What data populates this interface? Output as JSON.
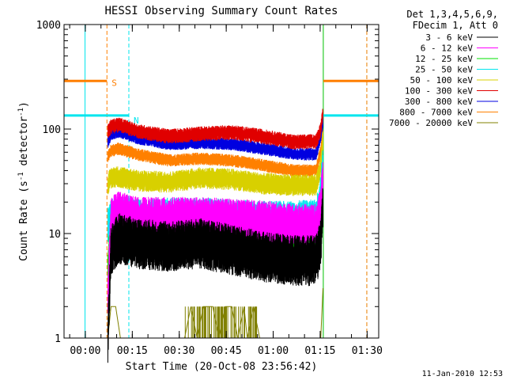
{
  "chart_data": {
    "type": "line",
    "title": "HESSI Observing Summary Count Rates",
    "xlabel": "Start Time (20-Oct-08 23:56:42)",
    "ylabel": "Count Rate (s",
    "ylabel_sup1": "-1",
    "ylabel_mid": " detector",
    "ylabel_sup2": "-1",
    "ylabel_end": ")",
    "x_unit": "minutes after start",
    "xlim": [
      -3.5,
      97
    ],
    "ylim": [
      1,
      1000
    ],
    "y_scale": "log",
    "grid": false,
    "x_ticks": [
      {
        "label": "00:00",
        "value": 3.3
      },
      {
        "label": "00:15",
        "value": 18.3
      },
      {
        "label": "00:30",
        "value": 33.3
      },
      {
        "label": "00:45",
        "value": 48.3
      },
      {
        "label": "01:00",
        "value": 63.3
      },
      {
        "label": "01:15",
        "value": 78.3
      },
      {
        "label": "01:30",
        "value": 93.3
      }
    ],
    "y_ticks": [
      {
        "label": "1",
        "value": 1
      },
      {
        "label": "10",
        "value": 10
      },
      {
        "label": "100",
        "value": 100
      },
      {
        "label": "1000",
        "value": 1000
      }
    ],
    "legend": {
      "placement": "right",
      "header_1": "Det 1,3,4,5,6,9,",
      "header_2": "FDecim 1, Att 0"
    },
    "flags": [
      {
        "label": "S",
        "color": "#ff7f00",
        "value": 0.82,
        "x_end": 10.2,
        "x_from": 79.3,
        "x_to": 97
      },
      {
        "label": "N",
        "color": "#00e5ee",
        "value": 0.71,
        "x_end": 17.2,
        "x_from": 79.3,
        "x_to": 97
      }
    ],
    "markers": [
      {
        "x": 3.2,
        "color": "#00e5ee",
        "style": "solid"
      },
      {
        "x": 10.2,
        "color": "#ff7f00",
        "style": "dashed"
      },
      {
        "x": 17.2,
        "color": "#00e5ee",
        "style": "dashed"
      },
      {
        "x": 79.3,
        "color": "#00c000",
        "style": "solid"
      },
      {
        "x": 93.2,
        "color": "#00e5ee",
        "style": "dashed"
      },
      {
        "x": 93.2,
        "color": "#ff7f00",
        "style": "dashed"
      }
    ],
    "series": [
      {
        "name": "3 - 6 keV",
        "color": "#000000",
        "noise": 0.5,
        "values": [
          [
            10.5,
            1
          ],
          [
            11.5,
            7
          ],
          [
            14,
            9
          ],
          [
            20,
            8
          ],
          [
            30,
            7.5
          ],
          [
            40,
            8
          ],
          [
            50,
            7
          ],
          [
            60,
            6
          ],
          [
            70,
            5.5
          ],
          [
            77,
            5.5
          ],
          [
            78.5,
            8
          ],
          [
            79.2,
            20
          ]
        ]
      },
      {
        "name": "6 - 12 keV",
        "color": "#ff00ff",
        "noise": 0.4,
        "values": [
          [
            10.5,
            2.5
          ],
          [
            11.5,
            14
          ],
          [
            14,
            16
          ],
          [
            20,
            14
          ],
          [
            30,
            14
          ],
          [
            40,
            14
          ],
          [
            50,
            13.5
          ],
          [
            60,
            13
          ],
          [
            70,
            12
          ],
          [
            77,
            12
          ],
          [
            78.5,
            18
          ],
          [
            79.2,
            35
          ]
        ]
      },
      {
        "name": "12 - 25 keV",
        "color": "#00e000",
        "noise": 0.4,
        "values": [
          [
            10.5,
            4.5
          ],
          [
            11.5,
            10
          ],
          [
            14,
            11
          ],
          [
            20,
            10.5
          ],
          [
            30,
            10
          ],
          [
            40,
            10.5
          ],
          [
            50,
            10
          ],
          [
            60,
            9
          ],
          [
            70,
            8.5
          ],
          [
            77,
            8.5
          ],
          [
            78.5,
            12
          ],
          [
            79.2,
            25
          ]
        ]
      },
      {
        "name": "25 - 50 keV",
        "color": "#00e5ee",
        "noise": 0.35,
        "values": [
          [
            10.5,
            12
          ],
          [
            11.5,
            14
          ],
          [
            14,
            15
          ],
          [
            20,
            14
          ],
          [
            30,
            14.5
          ],
          [
            40,
            14.5
          ],
          [
            50,
            14
          ],
          [
            60,
            13.5
          ],
          [
            70,
            13.5
          ],
          [
            77,
            14
          ],
          [
            78.5,
            25
          ],
          [
            79.2,
            45
          ]
        ]
      },
      {
        "name": "50 - 100 keV",
        "color": "#d8d000",
        "noise": 0.18,
        "values": [
          [
            10.5,
            30
          ],
          [
            11.5,
            34
          ],
          [
            14,
            35
          ],
          [
            20,
            32
          ],
          [
            30,
            31
          ],
          [
            40,
            34
          ],
          [
            50,
            33
          ],
          [
            60,
            30
          ],
          [
            70,
            29
          ],
          [
            77,
            29
          ],
          [
            78.5,
            45
          ],
          [
            79.2,
            80
          ]
        ]
      },
      {
        "name": "100 - 300 keV",
        "color": "#e00000",
        "noise": 0.12,
        "values": [
          [
            10.5,
            95
          ],
          [
            11.5,
            105
          ],
          [
            14,
            110
          ],
          [
            20,
            95
          ],
          [
            30,
            85
          ],
          [
            40,
            90
          ],
          [
            50,
            93
          ],
          [
            60,
            85
          ],
          [
            70,
            75
          ],
          [
            77,
            76
          ],
          [
            78.5,
            100
          ],
          [
            79.2,
            145
          ]
        ]
      },
      {
        "name": "300 - 800 keV",
        "color": "#0000e0",
        "noise": 0.1,
        "values": [
          [
            10.5,
            75
          ],
          [
            11.5,
            90
          ],
          [
            14,
            95
          ],
          [
            20,
            82
          ],
          [
            30,
            72
          ],
          [
            40,
            74
          ],
          [
            50,
            72
          ],
          [
            60,
            65
          ],
          [
            70,
            58
          ],
          [
            77,
            57
          ],
          [
            78.5,
            85
          ],
          [
            79.2,
            120
          ]
        ]
      },
      {
        "name": "800 - 7000 keV",
        "color": "#ff8000",
        "noise": 0.1,
        "values": [
          [
            10.5,
            55
          ],
          [
            11.5,
            62
          ],
          [
            14,
            65
          ],
          [
            20,
            57
          ],
          [
            30,
            50
          ],
          [
            40,
            52
          ],
          [
            50,
            50
          ],
          [
            60,
            45
          ],
          [
            70,
            40
          ],
          [
            77,
            40
          ],
          [
            78.5,
            62
          ],
          [
            79.2,
            95
          ]
        ]
      },
      {
        "name": "7000 - 20000 keV",
        "color": "#808000",
        "noise": 0,
        "values": [
          [
            10.5,
            1
          ],
          [
            11.5,
            2
          ],
          [
            13,
            2
          ],
          [
            14.5,
            1
          ],
          [
            35,
            1
          ],
          [
            37,
            2
          ],
          [
            39,
            1
          ],
          [
            41,
            2
          ],
          [
            44,
            2
          ],
          [
            46,
            1
          ],
          [
            48,
            2
          ],
          [
            50,
            2
          ],
          [
            52,
            1
          ],
          [
            54,
            2
          ],
          [
            55,
            1
          ],
          [
            57,
            2
          ],
          [
            59,
            1
          ],
          [
            78.5,
            1
          ],
          [
            79.2,
            3
          ]
        ]
      }
    ]
  },
  "footer": {
    "date": "11-Jan-2010 12:53"
  }
}
